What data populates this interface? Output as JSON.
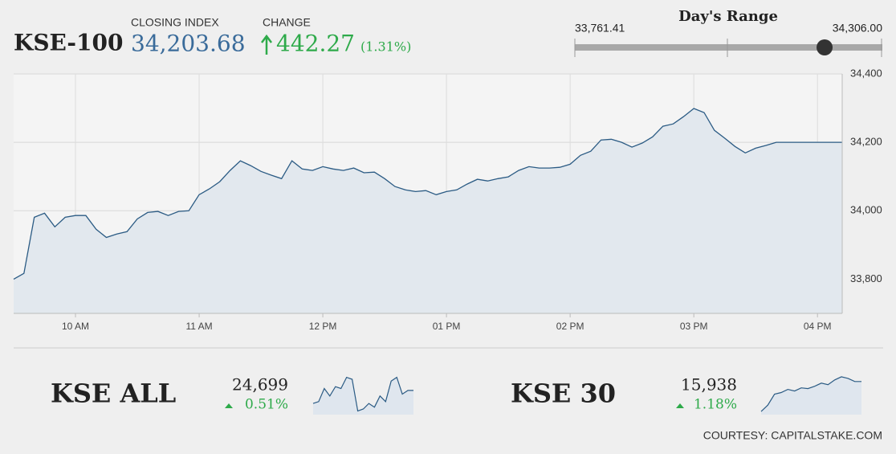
{
  "header": {
    "name": "KSE-100",
    "closing_label": "CLOSING INDEX",
    "closing": {
      "value": 34203.68,
      "label": "34,203.68"
    },
    "change_label": "CHANGE",
    "change": "442.27",
    "change_pct": "(1.31%)"
  },
  "day_range": {
    "title": "Day's Range",
    "low": {
      "value": 33761.41,
      "label": "33,761.41"
    },
    "high": {
      "value": 34306.0,
      "label": "34,306.00"
    }
  },
  "indices": [
    {
      "name": "KSE ALL",
      "value": "24,699",
      "change": "0.51%"
    },
    {
      "name": "KSE 30",
      "value": "15,938",
      "change": "1.18%"
    }
  ],
  "footer": "COURTESY: CAPITALSTAKE.COM",
  "chart_data": [
    {
      "type": "line",
      "color": "#2b5b84",
      "grid": true,
      "x": [
        570,
        575,
        580,
        585,
        590,
        595,
        600,
        605,
        610,
        615,
        620,
        625,
        630,
        635,
        640,
        645,
        650,
        655,
        660,
        665,
        670,
        675,
        680,
        685,
        690,
        695,
        700,
        705,
        710,
        715,
        720,
        725,
        730,
        735,
        740,
        745,
        750,
        755,
        760,
        765,
        770,
        775,
        780,
        785,
        790,
        795,
        800,
        805,
        810,
        815,
        820,
        825,
        830,
        835,
        840,
        845,
        850,
        855,
        860,
        865,
        870,
        875,
        880,
        885,
        890,
        895,
        900,
        905,
        910,
        915,
        920,
        925,
        930,
        935,
        940,
        972
      ],
      "values": [
        33800,
        33817,
        33981,
        33993,
        33953,
        33981,
        33986,
        33986,
        33946,
        33922,
        33932,
        33939,
        33976,
        33995,
        33998,
        33986,
        33998,
        34000,
        34047,
        34064,
        34085,
        34118,
        34146,
        34132,
        34115,
        34104,
        34094,
        34146,
        34122,
        34118,
        34129,
        34122,
        34118,
        34125,
        34111,
        34113,
        34094,
        34071,
        34061,
        34056,
        34059,
        34047,
        34056,
        34061,
        34078,
        34092,
        34087,
        34094,
        34099,
        34118,
        34129,
        34125,
        34125,
        34127,
        34136,
        34162,
        34174,
        34207,
        34209,
        34200,
        34186,
        34198,
        34216,
        34247,
        34254,
        34275,
        34299,
        34287,
        34235,
        34212,
        34188,
        34169,
        34183,
        34191,
        34200,
        34200
      ],
      "xlim": [
        570,
        972
      ],
      "ylim": [
        33700,
        34400
      ],
      "xticks": [
        {
          "value": 600,
          "label": "10 AM"
        },
        {
          "value": 660,
          "label": "11 AM"
        },
        {
          "value": 720,
          "label": "12 PM"
        },
        {
          "value": 780,
          "label": "01 PM"
        },
        {
          "value": 840,
          "label": "02 PM"
        },
        {
          "value": 900,
          "label": "03 PM"
        },
        {
          "value": 960,
          "label": "04 PM"
        }
      ],
      "yticks": [
        {
          "value": 33800,
          "label": "33,800"
        },
        {
          "value": 34000,
          "label": "34,000"
        },
        {
          "value": 34200,
          "label": "34,200"
        },
        {
          "value": 34400,
          "label": "34,400"
        }
      ]
    },
    {
      "type": "spark",
      "color": "#2b5b84",
      "ylim": [
        24500,
        24720
      ],
      "values": [
        24560,
        24570,
        24640,
        24600,
        24650,
        24640,
        24700,
        24690,
        24520,
        24530,
        24560,
        24540,
        24600,
        24570,
        24680,
        24700,
        24610,
        24630,
        24630
      ]
    },
    {
      "type": "spark",
      "color": "#2b5b84",
      "ylim": [
        15700,
        15960
      ],
      "values": [
        15720,
        15760,
        15830,
        15840,
        15860,
        15850,
        15870,
        15865,
        15880,
        15900,
        15890,
        15920,
        15940,
        15930,
        15910,
        15910
      ]
    }
  ]
}
